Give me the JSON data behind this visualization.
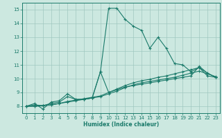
{
  "background_color": "#cce8e0",
  "grid_color": "#a0c8c0",
  "line_color": "#1a7a6a",
  "xlabel": "Humidex (Indice chaleur)",
  "ylim": [
    7.5,
    15.5
  ],
  "xlim": [
    -0.5,
    23.5
  ],
  "yticks": [
    8,
    9,
    10,
    11,
    12,
    13,
    14,
    15
  ],
  "xticks": [
    0,
    1,
    2,
    3,
    4,
    5,
    6,
    7,
    8,
    9,
    10,
    11,
    12,
    13,
    14,
    15,
    16,
    17,
    18,
    19,
    20,
    21,
    22,
    23
  ],
  "series": [
    {
      "x": [
        0,
        1,
        2,
        3,
        4,
        5,
        6,
        7,
        8,
        9,
        10,
        11,
        12,
        13,
        14,
        15,
        16,
        17,
        18,
        19,
        20,
        21,
        22,
        23
      ],
      "y": [
        8.0,
        8.2,
        7.8,
        8.3,
        8.4,
        8.9,
        8.5,
        8.5,
        8.6,
        10.5,
        15.1,
        15.1,
        14.3,
        13.8,
        13.5,
        12.2,
        13.0,
        12.2,
        11.1,
        11.0,
        10.5,
        10.8,
        10.2,
        10.1
      ]
    },
    {
      "x": [
        0,
        1,
        2,
        3,
        4,
        5,
        6,
        7,
        8,
        9,
        10,
        11,
        12,
        13,
        14,
        15,
        16,
        17,
        18,
        19,
        20,
        21,
        22,
        23
      ],
      "y": [
        8.0,
        8.1,
        8.05,
        8.2,
        8.3,
        8.7,
        8.5,
        8.5,
        8.6,
        10.5,
        9.0,
        9.2,
        9.4,
        9.5,
        9.6,
        9.7,
        9.8,
        9.9,
        10.0,
        10.1,
        10.2,
        10.9,
        10.4,
        10.1
      ]
    },
    {
      "x": [
        0,
        1,
        2,
        3,
        4,
        5,
        6,
        7,
        8,
        9,
        10,
        11,
        12,
        13,
        14,
        15,
        16,
        17,
        18,
        19,
        20,
        21,
        22,
        23
      ],
      "y": [
        8.0,
        8.0,
        8.05,
        8.1,
        8.2,
        8.3,
        8.4,
        8.5,
        8.6,
        8.7,
        8.9,
        9.1,
        9.35,
        9.55,
        9.7,
        9.8,
        9.9,
        10.0,
        10.1,
        10.25,
        10.4,
        10.55,
        10.35,
        10.15
      ]
    },
    {
      "x": [
        0,
        1,
        2,
        3,
        4,
        5,
        6,
        7,
        8,
        9,
        10,
        11,
        12,
        13,
        14,
        15,
        16,
        17,
        18,
        19,
        20,
        21,
        22,
        23
      ],
      "y": [
        8.0,
        8.0,
        8.05,
        8.1,
        8.2,
        8.35,
        8.45,
        8.55,
        8.65,
        8.75,
        9.0,
        9.25,
        9.5,
        9.7,
        9.85,
        9.95,
        10.1,
        10.2,
        10.35,
        10.5,
        10.65,
        10.8,
        10.4,
        10.1
      ]
    }
  ]
}
